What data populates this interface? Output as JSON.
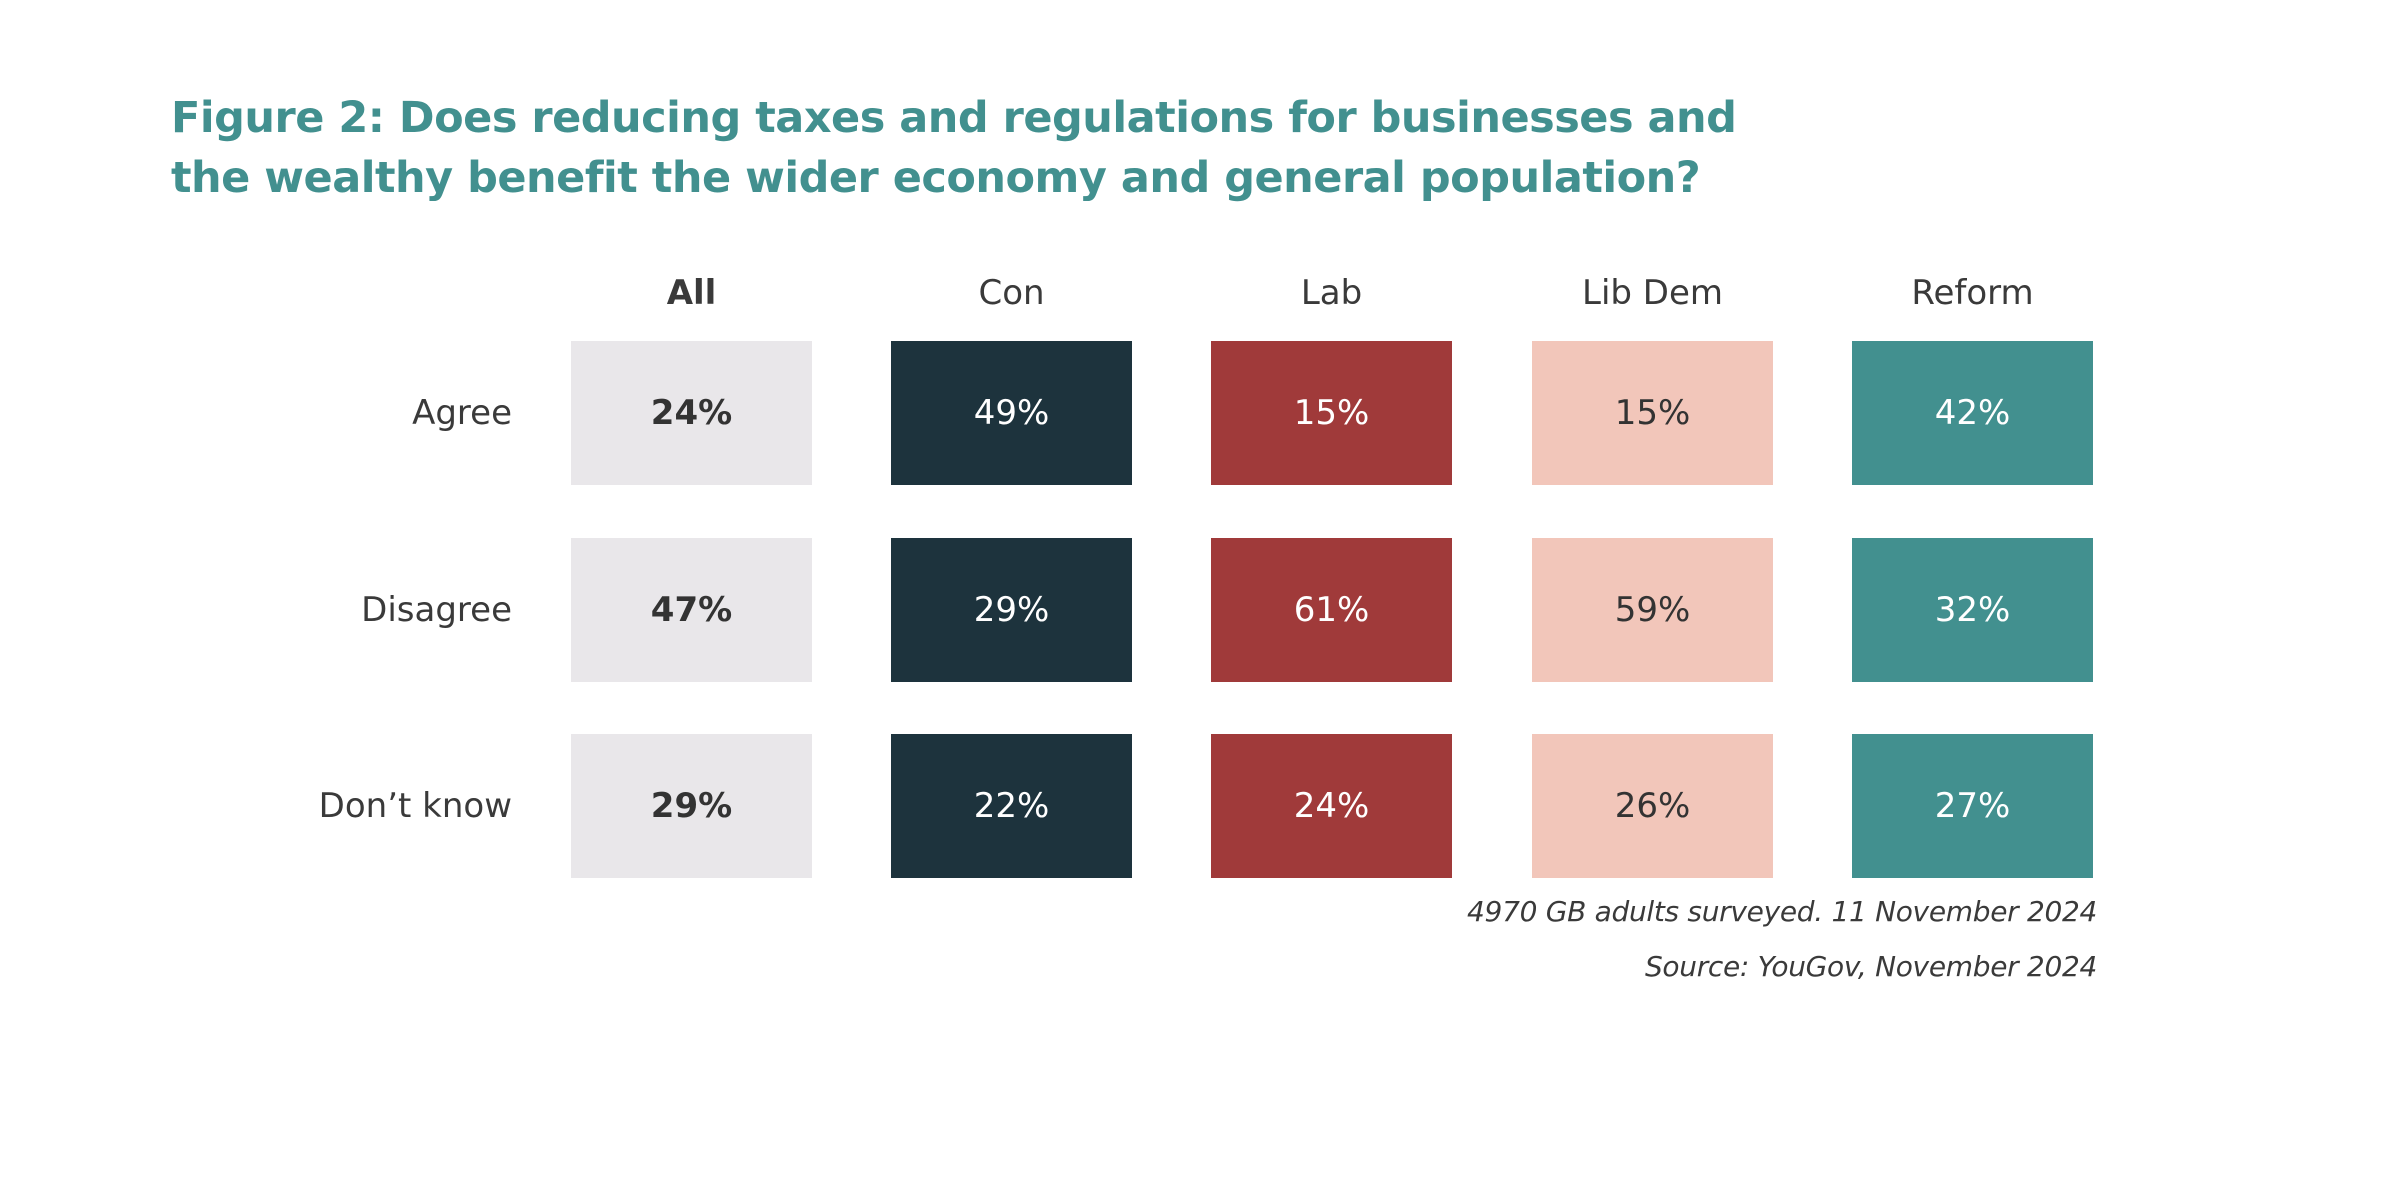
{
  "title": {
    "line1": "Figure 2: Does reducing taxes and regulations for businesses and",
    "line2": "the wealthy benefit the wider economy and general population?"
  },
  "notes": {
    "sample": "4970 GB adults surveyed. 11 November 2024",
    "source": "Source: YouGov, November 2024"
  },
  "colors": {
    "title": "#42908f",
    "text": "#3a3a3a"
  },
  "chart_data": {
    "type": "table",
    "columns": [
      {
        "name": "All",
        "bold": true,
        "fill": "#e9e7ea",
        "text_color": "#333333"
      },
      {
        "name": "Con",
        "bold": false,
        "fill": "#1d333d",
        "text_color": "#ffffff"
      },
      {
        "name": "Lab",
        "bold": false,
        "fill": "#a03a3a",
        "text_color": "#ffffff"
      },
      {
        "name": "Lib Dem",
        "bold": false,
        "fill": "#f2c6ba",
        "text_color": "#333333"
      },
      {
        "name": "Reform",
        "bold": false,
        "fill": "#42908f",
        "text_color": "#ffffff"
      }
    ],
    "rows": [
      {
        "label": "Agree",
        "values": [
          24,
          49,
          15,
          15,
          42
        ]
      },
      {
        "label": "Disagree",
        "values": [
          47,
          29,
          61,
          59,
          32
        ]
      },
      {
        "label": "Don’t know",
        "values": [
          29,
          22,
          24,
          26,
          27
        ]
      }
    ],
    "unit": "%"
  }
}
